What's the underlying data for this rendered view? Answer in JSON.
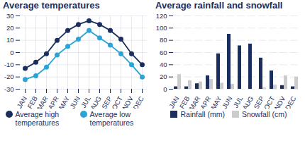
{
  "chart_data": [
    {
      "type": "line",
      "title": "Average temperatures",
      "categories": [
        "JAN",
        "FEB",
        "MAR",
        "APR",
        "MAY",
        "JUN",
        "JUL",
        "AUG",
        "SEP",
        "OCT",
        "NOV",
        "DEC"
      ],
      "series": [
        {
          "name": "Average high temperatures",
          "color": "#1b2f5e",
          "marker": "circle",
          "values": [
            -13,
            -8,
            -1,
            10,
            18,
            23,
            26,
            23,
            18,
            11,
            -1,
            -10
          ]
        },
        {
          "name": "Average low temperatures",
          "color": "#2ba3d6",
          "marker": "circle",
          "values": [
            -22,
            -19,
            -12,
            -2,
            5,
            11,
            18,
            12,
            6,
            -1,
            -10,
            -20
          ]
        }
      ],
      "ylim": [
        -30,
        30
      ],
      "yticks": [
        -30,
        -20,
        -10,
        0,
        10,
        20,
        30
      ],
      "grid": true,
      "legend": "bottom"
    },
    {
      "type": "bar",
      "title": "Average rainfall and snowfall",
      "categories": [
        "JAN",
        "FEB",
        "MAR",
        "APR",
        "MAY",
        "JUN",
        "JUL",
        "AUG",
        "SEP",
        "OCT",
        "NOV",
        "DEC"
      ],
      "series": [
        {
          "name": "Rainfall (mm)",
          "color": "#1b2f5e",
          "values": [
            4,
            4,
            9,
            22,
            58,
            90,
            71,
            74,
            51,
            30,
            6,
            4
          ]
        },
        {
          "name": "Snowfall (cm)",
          "color": "#cccccc",
          "values": [
            24,
            14,
            12,
            16,
            10,
            8,
            0,
            0,
            2,
            7,
            22,
            20
          ]
        }
      ],
      "ylim": [
        0,
        120
      ],
      "yticks": [
        0,
        20,
        40,
        60,
        80,
        100,
        120
      ],
      "grid": true,
      "legend": "bottom"
    }
  ]
}
